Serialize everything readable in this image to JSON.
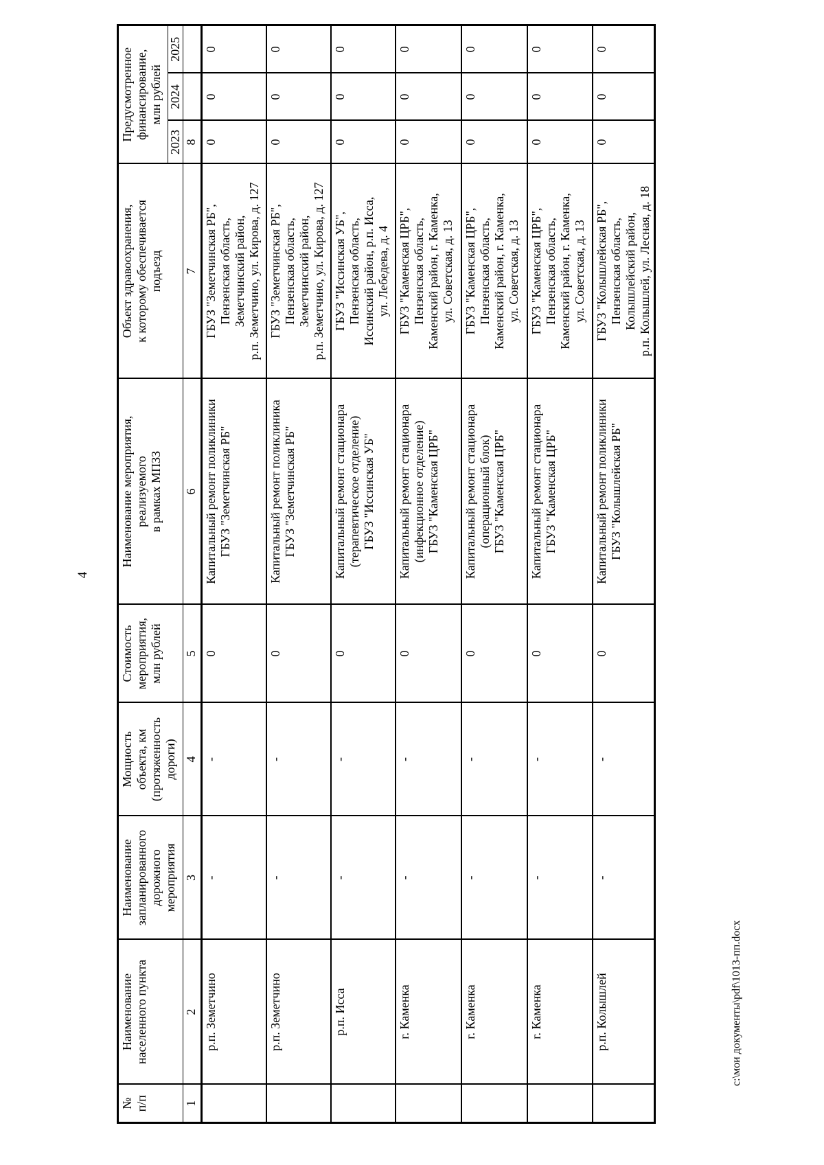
{
  "page": {
    "number": "4",
    "footer": "с:\\мои документы\\pdf\\1013-пп.docx"
  },
  "table": {
    "headers": {
      "num": "№\nп/п",
      "settlement": "Наименование\nнаселенного пункта",
      "road_measure": "Наименование\nзапланированного\nдорожного\nмероприятия",
      "capacity": "Мощность\nобъекта, км\n(протяженность\nдороги)",
      "cost": "Стоимость\nмероприятия,\nмлн рублей",
      "mpz_measure": "Наименование мероприятия,\nреализуемого\nв рамках МПЗЗ",
      "facility": "Объект здравоохранения,\nк которому обеспечивается\nподъезд",
      "financing": "Предусмотренное\nфинансирование,\nмлн рублей",
      "years": [
        "2023",
        "2024",
        "2025"
      ]
    },
    "numbering": [
      "1",
      "2",
      "3",
      "4",
      "5",
      "6",
      "7",
      "8",
      "",
      ""
    ],
    "rows": [
      {
        "settlement": "р.п. Земетчино",
        "road_measure": "-",
        "capacity": "-",
        "cost": "0",
        "mpz_measure": "Капитальный ремонт поликлиники\nГБУЗ \"Земетчинская РБ\"",
        "facility": "ГБУЗ \"Земетчинская РБ\",\nПензенская область,\nЗеметчинский район,\nр.п. Земетчино, ул. Кирова, д. 127",
        "fin_2023": "0",
        "fin_2024": "0",
        "fin_2025": "0"
      },
      {
        "settlement": "р.п. Земетчино",
        "road_measure": "-",
        "capacity": "-",
        "cost": "0",
        "mpz_measure": "Капитальный ремонт поликлиника\nГБУЗ \"Земетчинская РБ\"",
        "facility": "ГБУЗ \"Земетчинская РБ\",\nПензенская область,\nЗеметчинский район,\nр.п. Земетчино, ул. Кирова, д. 127",
        "fin_2023": "0",
        "fin_2024": "0",
        "fin_2025": "0"
      },
      {
        "settlement": "р.п. Исса",
        "road_measure": "-",
        "capacity": "-",
        "cost": "0",
        "mpz_measure": "Капитальный ремонт стационара\n(терапевтическое отделение)\nГБУЗ \"Иссинская УБ\"",
        "facility": "ГБУЗ \"Иссинская УБ\",\nПензенская область,\nИссинский район, р.п. Исса,\nул. Лебедева, д. 4",
        "fin_2023": "0",
        "fin_2024": "0",
        "fin_2025": "0"
      },
      {
        "settlement": "г. Каменка",
        "road_measure": "-",
        "capacity": "-",
        "cost": "0",
        "mpz_measure": "Капитальный ремонт стационара\n(инфекционное отделение)\nГБУЗ \"Каменская ЦРБ\"",
        "facility": "ГБУЗ \"Каменская ЦРБ\",\nПензенская область,\nКаменский район, г. Каменка,\nул. Советская, д. 13",
        "fin_2023": "0",
        "fin_2024": "0",
        "fin_2025": "0"
      },
      {
        "settlement": "г. Каменка",
        "road_measure": "-",
        "capacity": "-",
        "cost": "0",
        "mpz_measure": "Капитальный ремонт стационара\n(операционный блок)\nГБУЗ \"Каменская ЦРБ\"",
        "facility": "ГБУЗ \"Каменская ЦРБ\",\nПензенская область,\nКаменский район, г. Каменка,\nул. Советская, д. 13",
        "fin_2023": "0",
        "fin_2024": "0",
        "fin_2025": "0"
      },
      {
        "settlement": "г. Каменка",
        "road_measure": "-",
        "capacity": "-",
        "cost": "0",
        "mpz_measure": "Капитальный ремонт стационара\nГБУЗ \"Каменская ЦРБ\"",
        "facility": "ГБУЗ \"Каменская ЦРБ\",\nПензенская область,\nКаменский район, г. Каменка,\nул. Советская, д. 13",
        "fin_2023": "0",
        "fin_2024": "0",
        "fin_2025": "0"
      },
      {
        "settlement": "р.п. Колышлей",
        "road_measure": "-",
        "capacity": "-",
        "cost": "0",
        "mpz_measure": "Капитальный ремонт поликлиники\nГБУЗ \"Колышлейская РБ\"",
        "facility": "ГБУЗ \"Колышлейская РБ\",\nПензенская область,\nКолышлейский район,\nр.п. Колышлей, ул. Лесная, д. 18",
        "fin_2023": "0",
        "fin_2024": "0",
        "fin_2025": "0"
      }
    ]
  }
}
